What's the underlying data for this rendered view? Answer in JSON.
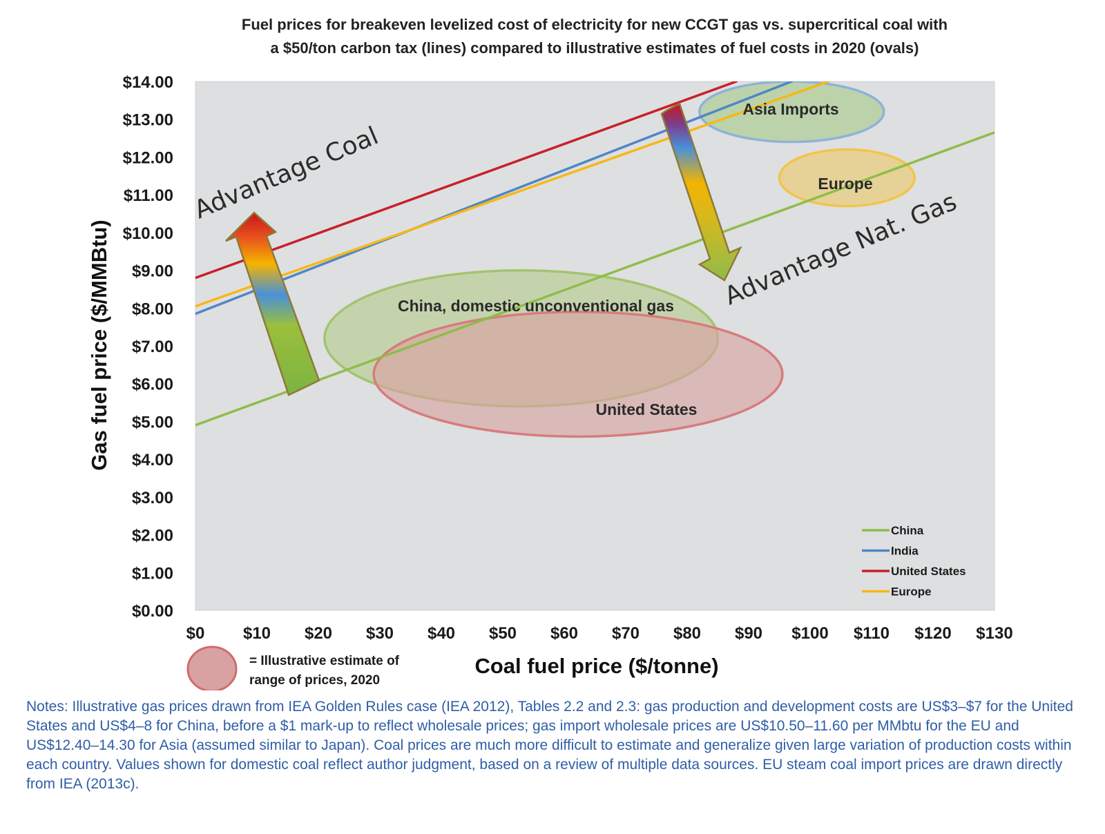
{
  "colors": {
    "china": "#8fbc4a",
    "india": "#4f86c6",
    "united_states": "#c8202a",
    "europe": "#f6b817",
    "plot_background": "#dedfe0",
    "notes_text": "#2e5ea6"
  },
  "chart_data": {
    "type": "line",
    "title_lines": [
      "Fuel prices for breakeven levelized cost of electricity for new CCGT gas vs. supercritical coal with",
      "a $50/ton carbon tax (lines) compared to illustrative estimates of fuel costs in 2020 (ovals)"
    ],
    "xlabel": "Coal fuel price ($/tonne)",
    "ylabel": "Gas fuel price ($/MMBtu)",
    "xlim": [
      0,
      130
    ],
    "ylim": [
      0,
      14
    ],
    "x_ticks": [
      0,
      10,
      20,
      30,
      40,
      50,
      60,
      70,
      80,
      90,
      100,
      110,
      120,
      130
    ],
    "x_tick_labels": [
      "$0",
      "$10",
      "$20",
      "$30",
      "$40",
      "$50",
      "$60",
      "$70",
      "$80",
      "$90",
      "$100",
      "$110",
      "$120",
      "$130"
    ],
    "y_ticks": [
      0,
      1,
      2,
      3,
      4,
      5,
      6,
      7,
      8,
      9,
      10,
      11,
      12,
      13,
      14
    ],
    "y_tick_labels": [
      "$0.00",
      "$1.00",
      "$2.00",
      "$3.00",
      "$4.00",
      "$5.00",
      "$6.00",
      "$7.00",
      "$8.00",
      "$9.00",
      "$10.00",
      "$11.00",
      "$12.00",
      "$13.00",
      "$14.00"
    ],
    "grid": false,
    "legend_position": "bottom-right",
    "series": [
      {
        "name": "China",
        "color": "#8fbc4a",
        "x": [
          0,
          130
        ],
        "y": [
          4.9,
          12.65
        ]
      },
      {
        "name": "India",
        "color": "#4f86c6",
        "x": [
          0,
          97
        ],
        "y": [
          7.85,
          14.0
        ]
      },
      {
        "name": "United States",
        "color": "#c8202a",
        "x": [
          0,
          88
        ],
        "y": [
          8.8,
          14.0
        ]
      },
      {
        "name": "Europe",
        "color": "#f6b817",
        "x": [
          0,
          103
        ],
        "y": [
          8.05,
          14.0
        ]
      }
    ],
    "regions": [
      {
        "label": "Asia Imports",
        "x_range": [
          82,
          112
        ],
        "y_range": [
          12.4,
          14.0
        ],
        "color": "#a8c98a",
        "edge": "#8fb2d8"
      },
      {
        "label": "Europe",
        "x_range": [
          95,
          117
        ],
        "y_range": [
          10.7,
          12.2
        ],
        "color": "#ecc96a",
        "edge": "#f2c44a"
      },
      {
        "label": "China, domestic unconventional gas",
        "x_range": [
          21,
          85
        ],
        "y_range": [
          5.4,
          9.0
        ],
        "color": "#b6cc8e",
        "edge": "#a3c46e"
      },
      {
        "label": "United States",
        "x_range": [
          29,
          95.5
        ],
        "y_range": [
          4.6,
          7.9
        ],
        "color": "#d9a2a2",
        "edge": "#d77c7c"
      }
    ],
    "annotations": [
      {
        "text": "Advantage Coal"
      },
      {
        "text": "Advantage Nat. Gas"
      }
    ],
    "oval_key": "= Illustrative estimate of range of prices, 2020"
  },
  "oval_key_lines": [
    "= Illustrative estimate of",
    "range of  prices, 2020"
  ],
  "notes": "Notes: Illustrative gas prices drawn from IEA Golden Rules case (IEA 2012), Tables 2.2 and 2.3: gas production and development costs are US$3–$7 for the United States and US$4–8 for China, before a $1 mark-up to reflect wholesale prices; gas import wholesale prices are US$10.50–11.60 per MMbtu for the EU and US$12.40–14.30 for Asia (assumed similar to Japan). Coal prices are much more difficult to estimate and generalize given large variation of production costs within each country. Values shown for domestic coal reflect author judgment, based on a review of multiple data sources. EU steam coal import prices are drawn directly from IEA (2013c)."
}
